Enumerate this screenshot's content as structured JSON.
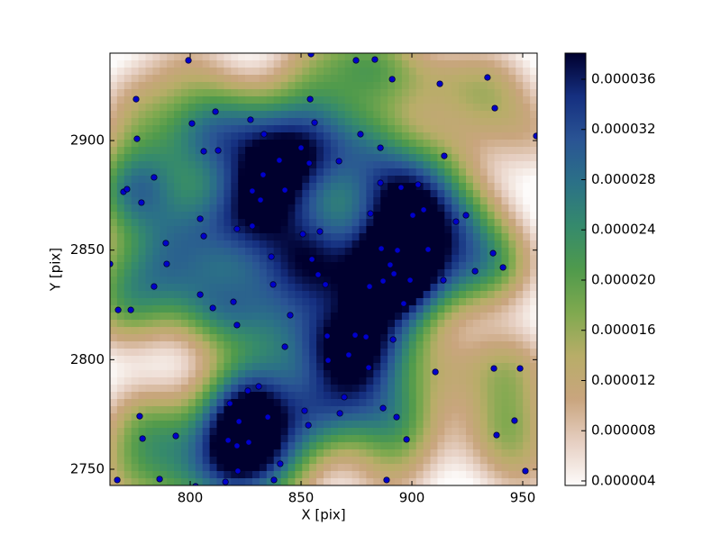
{
  "chart_data": {
    "type": "scatter",
    "x_label": "X [pix]",
    "y_label": "Y [pix]",
    "color": "#0000cc",
    "x": [
      763.8,
      767.1,
      767.5,
      773.2,
      769.9,
      771.5,
      778.0,
      775.6,
      776.0,
      777.2,
      778.5,
      783.7,
      783.7,
      786.2,
      789.0,
      789.4,
      793.5,
      799.2,
      800.8,
      802.4,
      804.5,
      804.5,
      806.1,
      806.1,
      810.2,
      811.4,
      812.6,
      815.9,
      817.1,
      817.9,
      819.5,
      821.1,
      821.1,
      821.1,
      821.5,
      822.0,
      826.0,
      827.2,
      826.4,
      828.0,
      828.0,
      830.9,
      831.7,
      832.9,
      833.3,
      835.0,
      836.6,
      837.4,
      837.8,
      840.2,
      840.6,
      842.7,
      845.1,
      842.7,
      850.0,
      850.8,
      851.6,
      853.3,
      853.7,
      854.1,
      854.5,
      854.9,
      856.1,
      857.7,
      858.5,
      861.0,
      861.8,
      862.2,
      867.1,
      867.5,
      869.5,
      871.5,
      874.8,
      874.4,
      876.8,
      879.3,
      880.5,
      880.9,
      881.3,
      883.3,
      885.8,
      885.8,
      886.2,
      887.0,
      887.0,
      888.6,
      890.2,
      891.1,
      891.5,
      891.9,
      893.1,
      893.5,
      895.1,
      896.3,
      897.6,
      899.2,
      900.4,
      902.8,
      905.3,
      907.3,
      910.6,
      912.6,
      914.2,
      914.6,
      919.9,
      924.4,
      928.5,
      934.1,
      936.6,
      937.0,
      937.4,
      938.2,
      941.1,
      946.3,
      948.8,
      951.2,
      956.1
    ],
    "y": [
      2843.7,
      2745.1,
      2822.7,
      2822.7,
      2876.6,
      2877.8,
      2871.7,
      2918.9,
      2900.8,
      2774.2,
      2764.0,
      2883.2,
      2833.4,
      2745.5,
      2853.2,
      2843.7,
      2765.2,
      2936.6,
      2907.8,
      2742.2,
      2864.3,
      2829.7,
      2856.4,
      2895.1,
      2823.6,
      2913.2,
      2895.5,
      2744.2,
      2763.2,
      2780.0,
      2826.4,
      2859.7,
      2815.8,
      2760.7,
      2749.2,
      2771.8,
      2785.8,
      2909.5,
      2762.3,
      2877.0,
      2861.0,
      2787.8,
      2872.9,
      2884.4,
      2902.9,
      2773.8,
      2847.0,
      2834.3,
      2745.1,
      2891.0,
      2752.5,
      2877.4,
      2820.3,
      2805.9,
      2896.7,
      2857.3,
      2776.7,
      2770.1,
      2889.7,
      2918.9,
      2939.5,
      2845.8,
      2908.2,
      2838.8,
      2858.5,
      2834.3,
      2810.8,
      2799.7,
      2890.6,
      2775.5,
      2782.9,
      2802.2,
      2936.6,
      2811.2,
      2902.9,
      2810.4,
      2796.4,
      2833.4,
      2866.7,
      2937.0,
      2896.7,
      2880.7,
      2850.7,
      2835.9,
      2777.9,
      2745.1,
      2843.3,
      2928.0,
      2809.2,
      2839.2,
      2773.8,
      2849.9,
      2878.6,
      2825.6,
      2763.6,
      2836.3,
      2865.9,
      2879.9,
      2868.4,
      2850.3,
      2794.4,
      2925.9,
      2836.3,
      2893.0,
      2863.0,
      2865.9,
      2840.4,
      2928.8,
      2848.6,
      2796.0,
      2914.8,
      2765.6,
      2842.1,
      2772.2,
      2796.0,
      2749.2,
      2902.1
    ],
    "xlim": [
      763.8,
      956.5
    ],
    "ylim": [
      2742.6,
      2939.9
    ],
    "xticks": [
      800,
      850,
      900,
      950
    ],
    "yticks": [
      2750,
      2800,
      2850,
      2900
    ],
    "colorbar": {
      "lim": [
        3.64e-06,
        3.808e-05
      ],
      "ticks": [
        {
          "value": 4e-06,
          "label": "0.000004"
        },
        {
          "value": 8e-06,
          "label": "0.000008"
        },
        {
          "value": 1.2e-05,
          "label": "0.000012"
        },
        {
          "value": 1.6e-05,
          "label": "0.000016"
        },
        {
          "value": 2e-05,
          "label": "0.000020"
        },
        {
          "value": 2.4e-05,
          "label": "0.000024"
        },
        {
          "value": 2.8e-05,
          "label": "0.000028"
        },
        {
          "value": 3.2e-05,
          "label": "0.000032"
        },
        {
          "value": 3.6e-05,
          "label": "0.000036"
        }
      ],
      "colormap": [
        "#fdfbfa",
        "#e6cfc2",
        "#c9a57e",
        "#b8ad68",
        "#7fa94f",
        "#4f9a4c",
        "#358a6c",
        "#2b7187",
        "#2a5494",
        "#152f80",
        "#00002e"
      ]
    }
  }
}
